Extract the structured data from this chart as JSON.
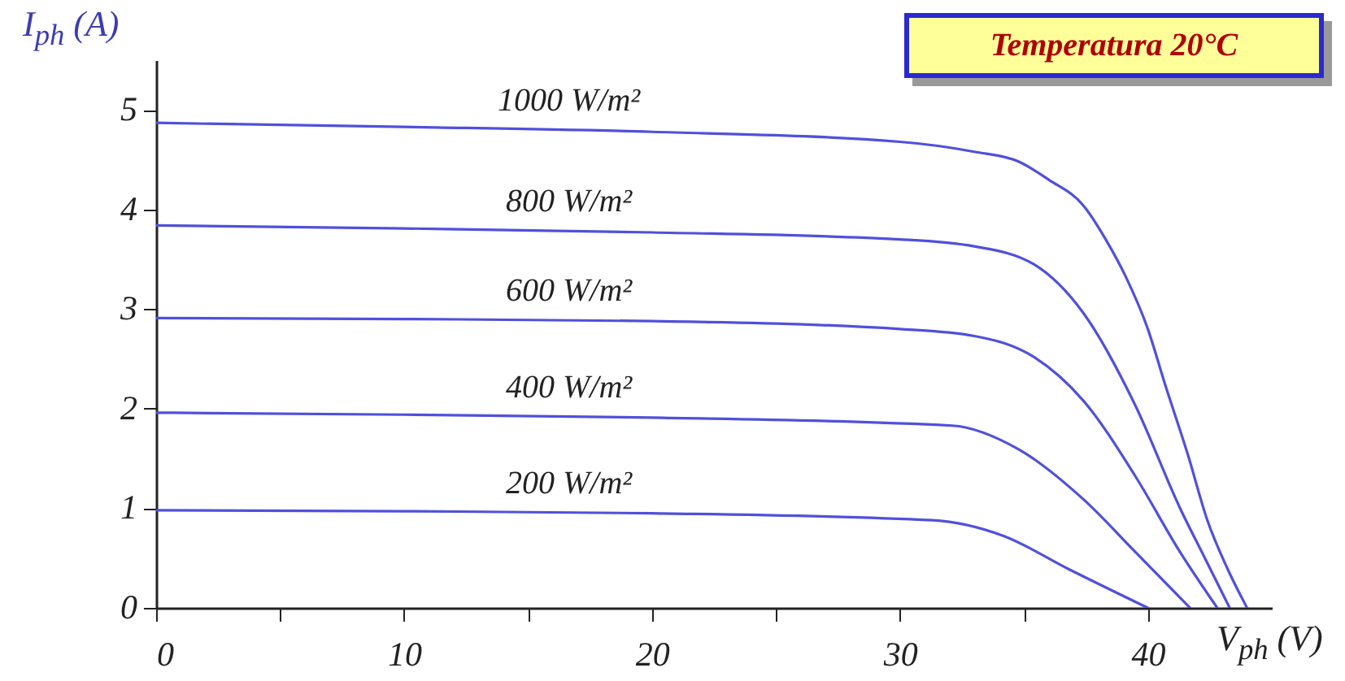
{
  "chart_data": {
    "type": "line",
    "annotations": [
      "Temperatura 20°C"
    ],
    "xlabel": "V$_{ph}$ (V)",
    "ylabel": "I$_{ph}$ (A)",
    "xlim": [
      0,
      45
    ],
    "ylim": [
      0,
      5.5
    ],
    "xticks": [
      0,
      {
        "value": 5,
        "label": null
      },
      10,
      {
        "value": 15,
        "label": null
      },
      20,
      {
        "value": 25,
        "label": null
      },
      30,
      {
        "value": 35,
        "label": null
      },
      40
    ],
    "yticks": [
      0,
      1,
      2,
      3,
      4,
      5
    ],
    "grid": false,
    "legend": false,
    "marker": "none",
    "line_style": "solid",
    "series": [
      {
        "name": "1000 W/m²",
        "color": "#5050dc",
        "x": [
          0,
          10,
          20,
          30,
          33,
          34.8,
          36,
          37.4,
          38.3,
          39.1,
          40,
          40.7,
          41.6,
          42.4,
          43.2,
          44
        ],
        "values": [
          4.87,
          4.83,
          4.78,
          4.68,
          4.58,
          4.48,
          4.3,
          4.04,
          3.7,
          3.33,
          2.8,
          2.24,
          1.55,
          0.88,
          0.4,
          0
        ]
      },
      {
        "name": "800 W/m²",
        "color": "#5050dc",
        "x": [
          0,
          10,
          20,
          30,
          33,
          35.4,
          37.4,
          39.5,
          41.3,
          42.3,
          43.3
        ],
        "values": [
          3.84,
          3.81,
          3.77,
          3.7,
          3.63,
          3.45,
          2.96,
          2.03,
          1.0,
          0.5,
          0
        ]
      },
      {
        "name": "600 W/m²",
        "color": "#5050dc",
        "x": [
          0,
          10,
          20,
          30,
          33,
          35.4,
          37.4,
          39.5,
          41.3,
          42.8
        ],
        "values": [
          2.91,
          2.9,
          2.88,
          2.8,
          2.73,
          2.52,
          2.08,
          1.32,
          0.56,
          0
        ]
      },
      {
        "name": "400 W/m²",
        "color": "#5050dc",
        "x": [
          0,
          10,
          20,
          32.1,
          34.8,
          37.4,
          39.5,
          41.7
        ],
        "values": [
          1.96,
          1.94,
          1.91,
          1.83,
          1.59,
          1.09,
          0.56,
          0
        ]
      },
      {
        "name": "200 W/m²",
        "color": "#5050dc",
        "x": [
          0,
          10,
          20,
          31.3,
          34.2,
          36.8,
          40
        ],
        "values": [
          0.98,
          0.97,
          0.95,
          0.88,
          0.72,
          0.39,
          0
        ]
      }
    ]
  }
}
